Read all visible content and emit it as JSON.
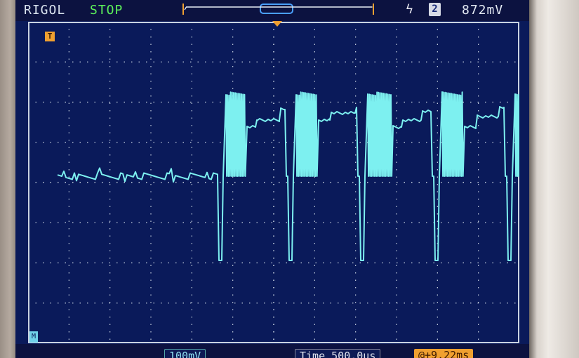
{
  "header": {
    "brand": "RIGOL",
    "run_state": "STOP",
    "trigger_channel": "2",
    "trigger_level": "872mV"
  },
  "markers": {
    "trigger_marker": "T",
    "ground_marker": "M"
  },
  "footer": {
    "channel_scale": "100mV",
    "time_base": "Time 500.0us",
    "trigger_offset": "@+9.22ms"
  },
  "colors": {
    "screen_bg": "#0a1a5a",
    "trace": "#7df0f0",
    "grid": "#c8d2e0",
    "run_state": "#5cf05a",
    "trigger_orange": "#f0a030"
  },
  "icons": {
    "trigger_edge": "edge-trigger-icon"
  }
}
